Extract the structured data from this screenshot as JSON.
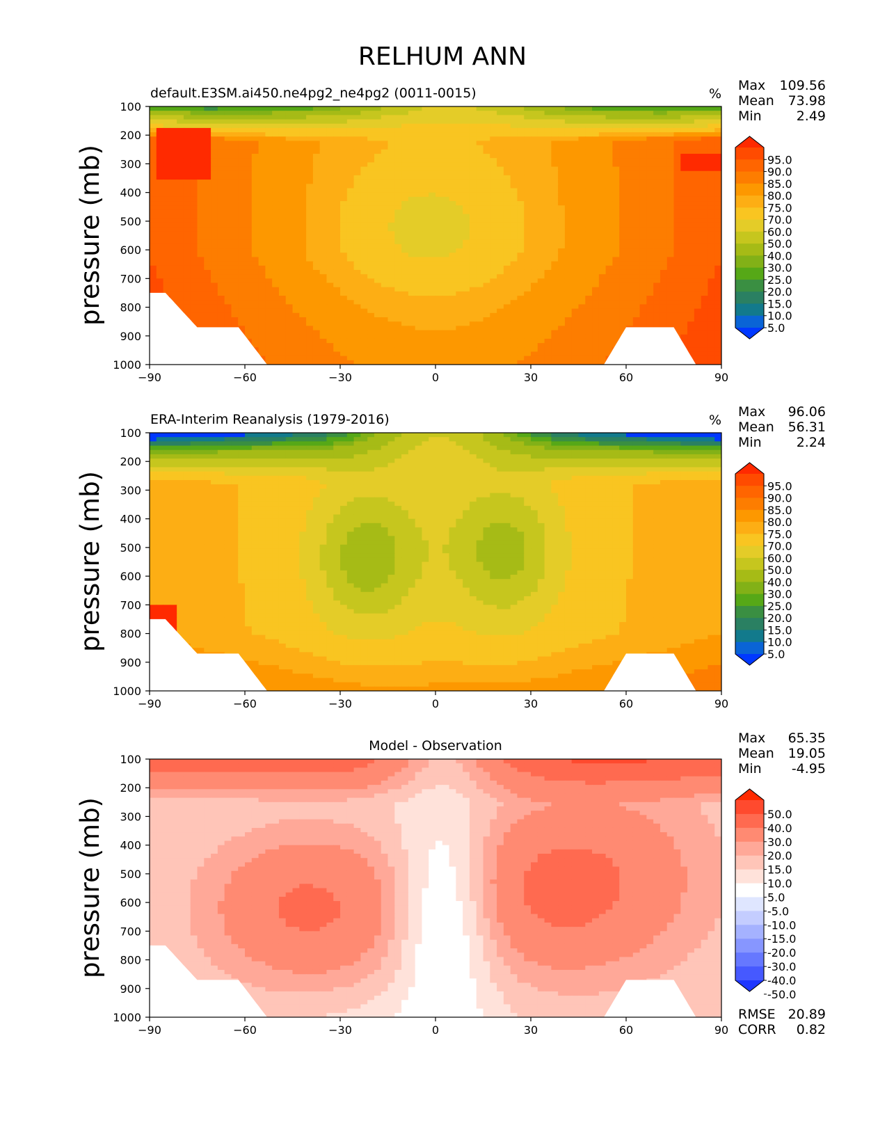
{
  "figure_title": "RELHUM ANN",
  "chart_data": [
    {
      "type": "contour",
      "title": "default.E3SM.ai450.ne4pg2_ne4pg2 (0011-0015)",
      "units": "%",
      "xlabel": "",
      "ylabel": "pressure (mb)",
      "xlim": [
        -90,
        90
      ],
      "ylim": [
        1000,
        100
      ],
      "xticks": [
        -90,
        -60,
        -30,
        0,
        30,
        60,
        90
      ],
      "xtick_labels": [
        "−90",
        "−60",
        "−30",
        "0",
        "30",
        "60",
        "90"
      ],
      "yticks": [
        100,
        200,
        300,
        400,
        500,
        600,
        700,
        800,
        900,
        1000
      ],
      "ytick_labels": [
        "100",
        "200",
        "300",
        "400",
        "500",
        "600",
        "700",
        "800",
        "900",
        "1000"
      ],
      "stats": [
        {
          "label": "Max",
          "value": "109.56"
        },
        {
          "label": "Mean",
          "value": "73.98"
        },
        {
          "label": "Min",
          "value": "2.49"
        }
      ],
      "colorbar_levels": [
        "95.0",
        "90.0",
        "85.0",
        "80.0",
        "75.0",
        "70.0",
        "60.0",
        "50.0",
        "40.0",
        "30.0",
        "25.0",
        "20.0",
        "15.0",
        "10.0",
        "5.0"
      ],
      "colorbar_colors": [
        "#ff2a00",
        "#ff4b00",
        "#ff6500",
        "#fd7d00",
        "#fd9800",
        "#fdae14",
        "#f9c521",
        "#e4cc28",
        "#c6c61e",
        "#a6bb16",
        "#82b117",
        "#56a817",
        "#3a8f42",
        "#2a8062",
        "#127a8c",
        "#0a64d6",
        "#0038ff"
      ],
      "mode": "model"
    },
    {
      "type": "contour",
      "title": "ERA-Interim Reanalysis (1979-2016)",
      "units": "%",
      "xlabel": "",
      "ylabel": "pressure (mb)",
      "xlim": [
        -90,
        90
      ],
      "ylim": [
        1000,
        100
      ],
      "xticks": [
        -90,
        -60,
        -30,
        0,
        30,
        60,
        90
      ],
      "xtick_labels": [
        "−90",
        "−60",
        "−30",
        "0",
        "30",
        "60",
        "90"
      ],
      "yticks": [
        100,
        200,
        300,
        400,
        500,
        600,
        700,
        800,
        900,
        1000
      ],
      "ytick_labels": [
        "100",
        "200",
        "300",
        "400",
        "500",
        "600",
        "700",
        "800",
        "900",
        "1000"
      ],
      "stats": [
        {
          "label": "Max",
          "value": "96.06"
        },
        {
          "label": "Mean",
          "value": "56.31"
        },
        {
          "label": "Min",
          "value": "2.24"
        }
      ],
      "colorbar_levels": [
        "95.0",
        "90.0",
        "85.0",
        "80.0",
        "75.0",
        "70.0",
        "60.0",
        "50.0",
        "40.0",
        "30.0",
        "25.0",
        "20.0",
        "15.0",
        "10.0",
        "5.0"
      ],
      "colorbar_colors": [
        "#ff2a00",
        "#ff4b00",
        "#ff6500",
        "#fd7d00",
        "#fd9800",
        "#fdae14",
        "#f9c521",
        "#e4cc28",
        "#c6c61e",
        "#a6bb16",
        "#82b117",
        "#56a817",
        "#3a8f42",
        "#2a8062",
        "#127a8c",
        "#0a64d6",
        "#0038ff"
      ],
      "mode": "obs"
    },
    {
      "type": "contour",
      "title": "Model - Observation",
      "units": "",
      "xlabel": "",
      "ylabel": "pressure (mb)",
      "xlim": [
        -90,
        90
      ],
      "ylim": [
        1000,
        100
      ],
      "xticks": [
        -90,
        -60,
        -30,
        0,
        30,
        60,
        90
      ],
      "xtick_labels": [
        "−90",
        "−60",
        "−30",
        "0",
        "30",
        "60",
        "90"
      ],
      "yticks": [
        100,
        200,
        300,
        400,
        500,
        600,
        700,
        800,
        900,
        1000
      ],
      "ytick_labels": [
        "100",
        "200",
        "300",
        "400",
        "500",
        "600",
        "700",
        "800",
        "900",
        "1000"
      ],
      "stats": [
        {
          "label": "Max",
          "value": "65.35"
        },
        {
          "label": "Mean",
          "value": "19.05"
        },
        {
          "label": "Min",
          "value": "-4.95"
        }
      ],
      "extra_stats": [
        {
          "label": "RMSE",
          "value": "20.89"
        },
        {
          "label": "CORR",
          "value": "0.82"
        }
      ],
      "colorbar_levels": [
        "50.0",
        "40.0",
        "30.0",
        "20.0",
        "15.0",
        "10.0",
        "5.0",
        "-5.0",
        "-10.0",
        "-15.0",
        "-20.0",
        "-30.0",
        "-40.0",
        "-50.0"
      ],
      "colorbar_colors": [
        "#ff2a00",
        "#ff4a2e",
        "#ff6a50",
        "#ff8a72",
        "#ffa898",
        "#ffc5b8",
        "#ffe2da",
        "#ffffff",
        "#dfe6ff",
        "#c4cdff",
        "#a5b2ff",
        "#8796ff",
        "#6678ff",
        "#4659ff",
        "#1e36ff"
      ],
      "mode": "diff"
    }
  ]
}
